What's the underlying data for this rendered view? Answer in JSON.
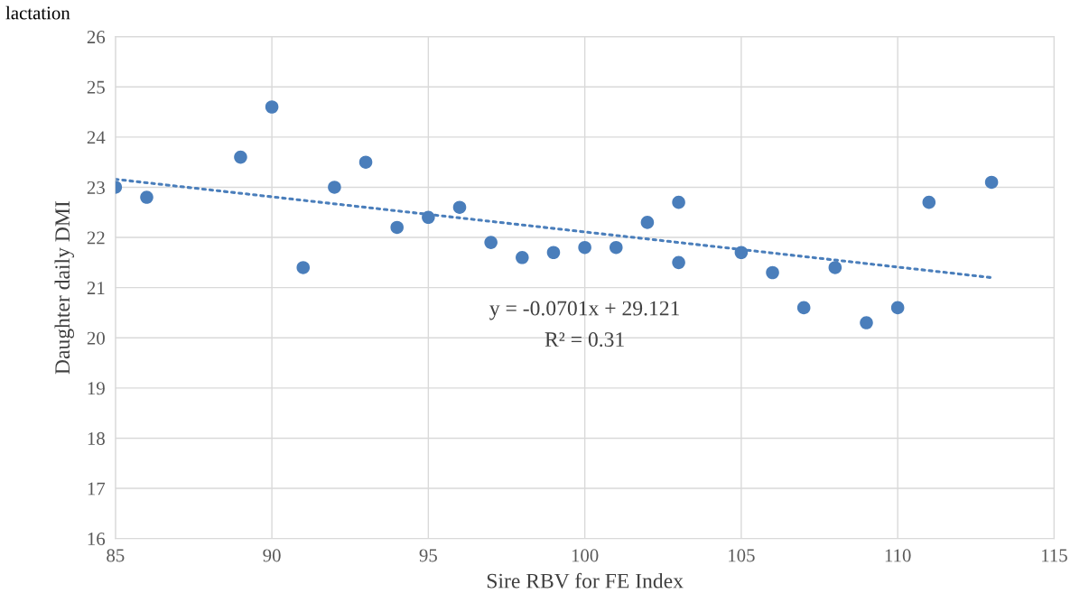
{
  "chart_data": {
    "type": "scatter",
    "title": "lactation",
    "xlabel": "Sire RBV for FE Index",
    "ylabel": "Daughter daily DMI",
    "annotations": [
      "y = -0.0701x + 29.121",
      "R² = 0.31"
    ],
    "x": [
      85,
      86,
      89,
      90,
      91,
      92,
      93,
      94,
      95,
      96,
      97,
      98,
      99,
      100,
      101,
      102,
      103,
      103,
      105,
      106,
      107,
      108,
      109,
      110,
      111,
      113
    ],
    "series": [
      {
        "type": "scatter",
        "color": "#4a7ebb",
        "marker": "circle",
        "values": [
          23.0,
          22.8,
          23.6,
          24.6,
          21.4,
          23.0,
          23.5,
          22.2,
          22.4,
          22.6,
          21.9,
          21.6,
          21.7,
          21.8,
          21.8,
          22.3,
          22.7,
          21.5,
          21.7,
          21.3,
          20.6,
          21.4,
          20.3,
          20.6,
          22.7,
          23.1
        ]
      },
      {
        "type": "line",
        "color": "#4a7ebb",
        "line_style": "dotted",
        "marker": "none",
        "x": [
          85,
          113
        ],
        "values": [
          23.16,
          21.2
        ]
      }
    ],
    "xlim": [
      85,
      115
    ],
    "xticks": [
      85,
      90,
      95,
      100,
      105,
      110,
      115
    ],
    "ylim": [
      16,
      26
    ],
    "yticks": [
      16,
      17,
      18,
      19,
      20,
      21,
      22,
      23,
      24,
      25,
      26
    ],
    "grid": true
  }
}
